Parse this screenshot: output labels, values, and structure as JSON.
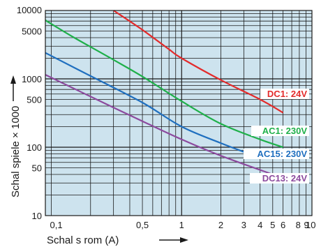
{
  "chart_data": {
    "type": "line",
    "xscale": "log",
    "yscale": "log",
    "xlim": [
      0.09,
      10
    ],
    "ylim": [
      10,
      10000
    ],
    "xlabel": "Schal s rom (A)",
    "ylabel": "Schal spiele × 1000",
    "x_tick_labels": [
      {
        "x": 0.1,
        "label": "0,1"
      },
      {
        "x": 0.5,
        "label": "0,5"
      },
      {
        "x": 1,
        "label": "1"
      },
      {
        "x": 2,
        "label": "2"
      },
      {
        "x": 3,
        "label": "3"
      },
      {
        "x": 4,
        "label": "4"
      },
      {
        "x": 5,
        "label": "5"
      },
      {
        "x": 6,
        "label": "6"
      },
      {
        "x": 8,
        "label": "8"
      },
      {
        "x": 9,
        "label": "9"
      },
      {
        "x": 10,
        "label": "10"
      }
    ],
    "y_tick_labels": [
      {
        "y": 10000,
        "label": "10000"
      },
      {
        "y": 5000,
        "label": "5000"
      },
      {
        "y": 1000,
        "label": "1000"
      },
      {
        "y": 500,
        "label": "500"
      },
      {
        "y": 100,
        "label": "100"
      },
      {
        "y": 50,
        "label": "50"
      },
      {
        "y": 10,
        "label": "10"
      }
    ],
    "grid": true,
    "background_color": "#cde3ee",
    "series": [
      {
        "name": "DC1: 24V",
        "color": "#e32b2b",
        "points": [
          [
            0.3,
            10000
          ],
          [
            0.5,
            5200
          ],
          [
            0.8,
            2700
          ],
          [
            1,
            2000
          ],
          [
            2,
            960
          ],
          [
            4,
            500
          ],
          [
            6,
            320
          ]
        ]
      },
      {
        "name": "AC1: 230V",
        "color": "#1fb04a",
        "points": [
          [
            0.09,
            7200
          ],
          [
            0.15,
            4000
          ],
          [
            0.3,
            1900
          ],
          [
            0.5,
            1080
          ],
          [
            1,
            470
          ],
          [
            2,
            220
          ],
          [
            4,
            130
          ],
          [
            6,
            100
          ]
        ]
      },
      {
        "name": "AC15: 230V",
        "color": "#1f6fbf",
        "points": [
          [
            0.09,
            2400
          ],
          [
            0.2,
            1100
          ],
          [
            0.5,
            450
          ],
          [
            1,
            200
          ],
          [
            2,
            115
          ],
          [
            3.3,
            80
          ]
        ]
      },
      {
        "name": "DC13: 24V",
        "color": "#8c4a9e",
        "points": [
          [
            0.09,
            1150
          ],
          [
            0.2,
            550
          ],
          [
            0.5,
            240
          ],
          [
            1,
            130
          ],
          [
            2,
            75
          ],
          [
            5,
            40
          ]
        ]
      }
    ]
  }
}
